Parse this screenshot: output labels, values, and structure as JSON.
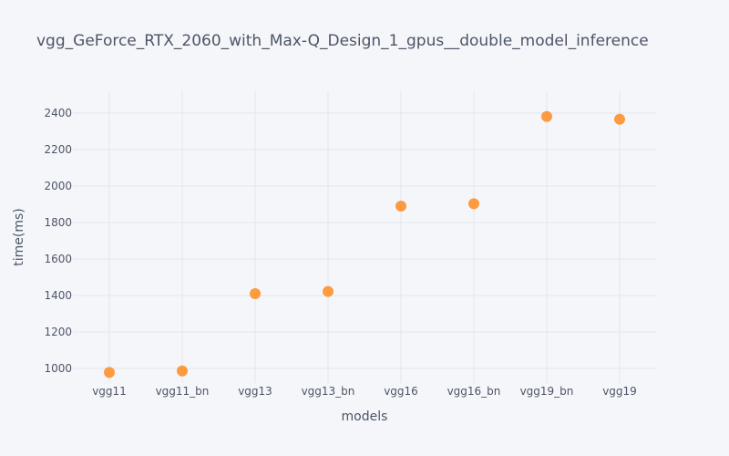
{
  "chart_data": {
    "type": "scatter",
    "title": "vgg_GeForce_RTX_2060_with_Max-Q_Design_1_gpus__double_model_inference",
    "xlabel": "models",
    "ylabel": "time(ms)",
    "categories": [
      "vgg11",
      "vgg11_bn",
      "vgg13",
      "vgg13_bn",
      "vgg16",
      "vgg16_bn",
      "vgg19_bn",
      "vgg19"
    ],
    "values": [
      978,
      986,
      1410,
      1422,
      1890,
      1903,
      2381,
      2366
    ],
    "yticks": [
      1000,
      1200,
      1400,
      1600,
      1800,
      2000,
      2200,
      2400
    ],
    "ylim": [
      920,
      2520
    ],
    "grid": true,
    "marker_color": "#fd9637"
  }
}
